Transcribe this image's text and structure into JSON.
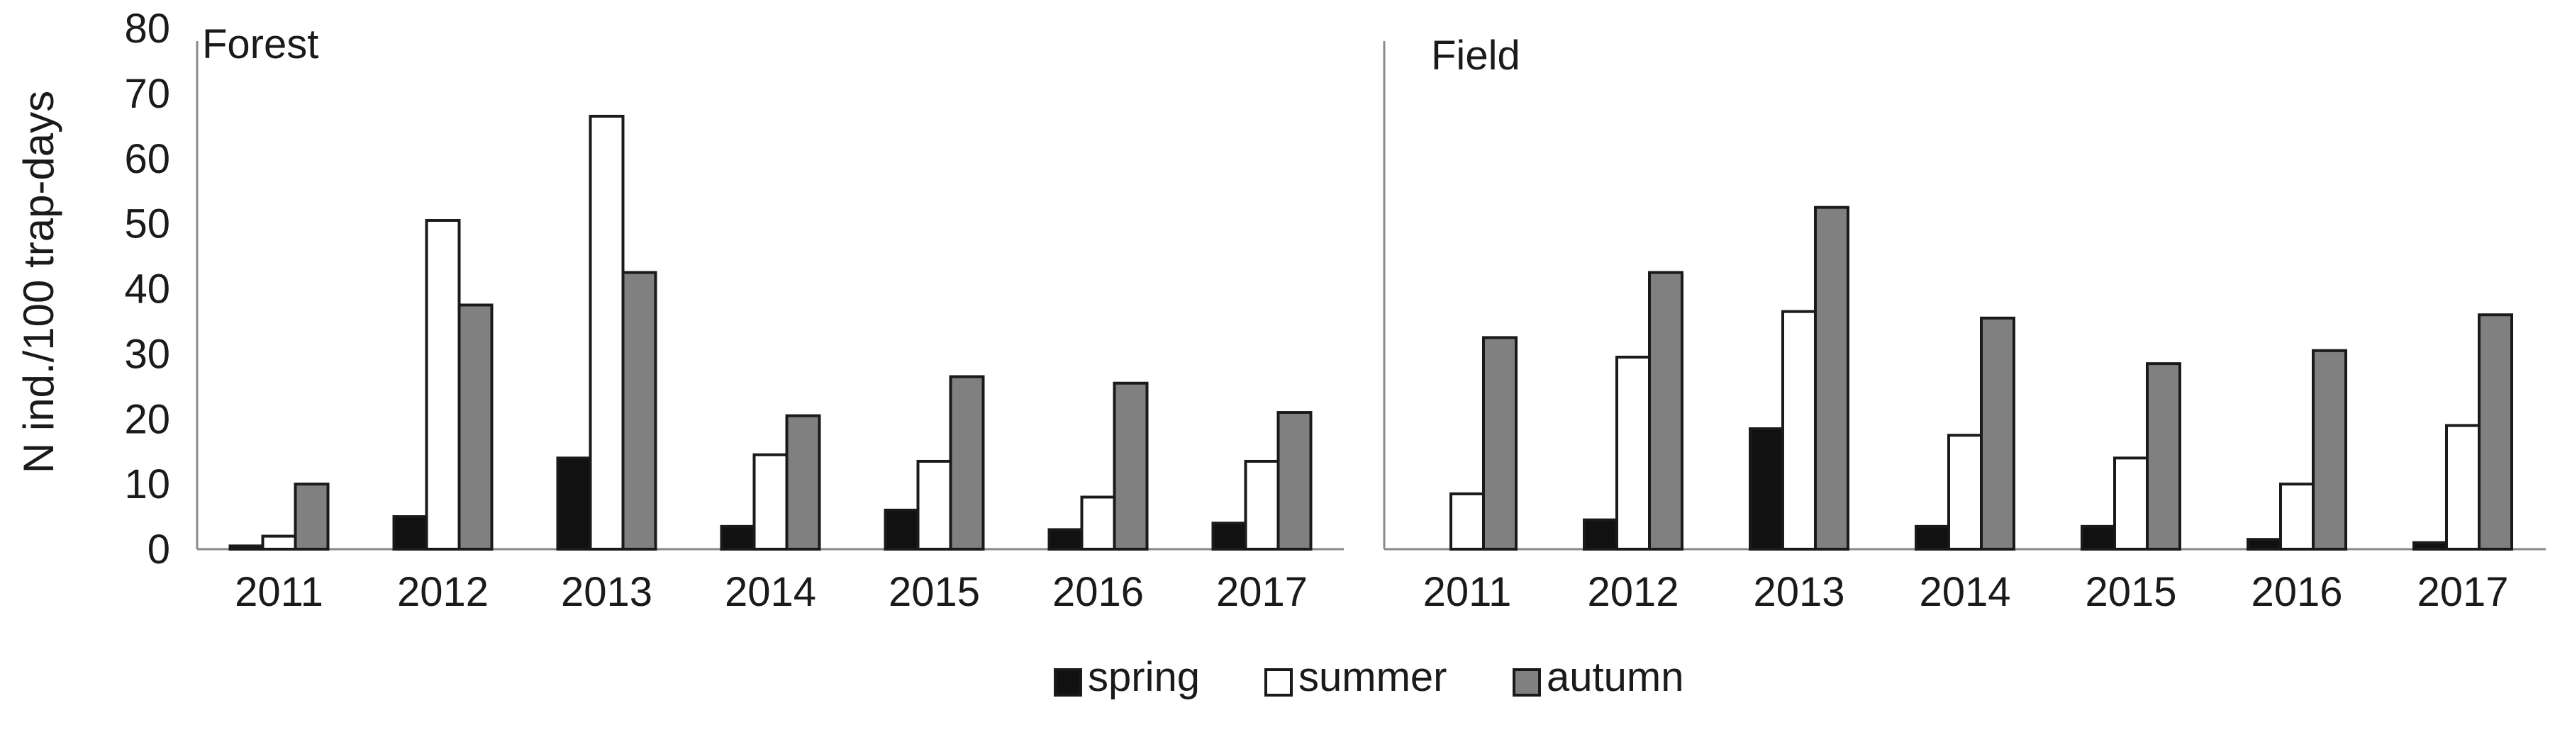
{
  "chart_data": {
    "type": "bar",
    "ylabel": "N ind./100 trap-days",
    "ylim": [
      0,
      80
    ],
    "yticks": [
      0,
      10,
      20,
      30,
      40,
      50,
      60,
      70,
      80
    ],
    "categories": [
      "2011",
      "2012",
      "2013",
      "2014",
      "2015",
      "2016",
      "2017"
    ],
    "colors": {
      "spring": "#111111",
      "summer": "#ffffff",
      "autumn": "#808080"
    },
    "legend": {
      "position": "bottom-center",
      "entries": [
        {
          "key": "spring",
          "label": "spring"
        },
        {
          "key": "summer",
          "label": "summer"
        },
        {
          "key": "autumn",
          "label": "autumn"
        }
      ]
    },
    "panels": [
      {
        "title": "Forest",
        "series": [
          {
            "name": "spring",
            "values": [
              0.5,
              5,
              14,
              3.5,
              6,
              3,
              4
            ]
          },
          {
            "name": "summer",
            "values": [
              2,
              50.5,
              66.5,
              14.5,
              13.5,
              8,
              13.5
            ]
          },
          {
            "name": "autumn",
            "values": [
              10,
              37.5,
              42.5,
              20.5,
              26.5,
              25.5,
              21
            ]
          }
        ]
      },
      {
        "title": "Field",
        "series": [
          {
            "name": "spring",
            "values": [
              0,
              4.5,
              18.5,
              3.5,
              3.5,
              1.5,
              1
            ]
          },
          {
            "name": "summer",
            "values": [
              8.5,
              29.5,
              36.5,
              17.5,
              14,
              10,
              19
            ]
          },
          {
            "name": "autumn",
            "values": [
              32.5,
              42.5,
              52.5,
              35.5,
              28.5,
              30.5,
              36
            ]
          }
        ]
      }
    ]
  }
}
